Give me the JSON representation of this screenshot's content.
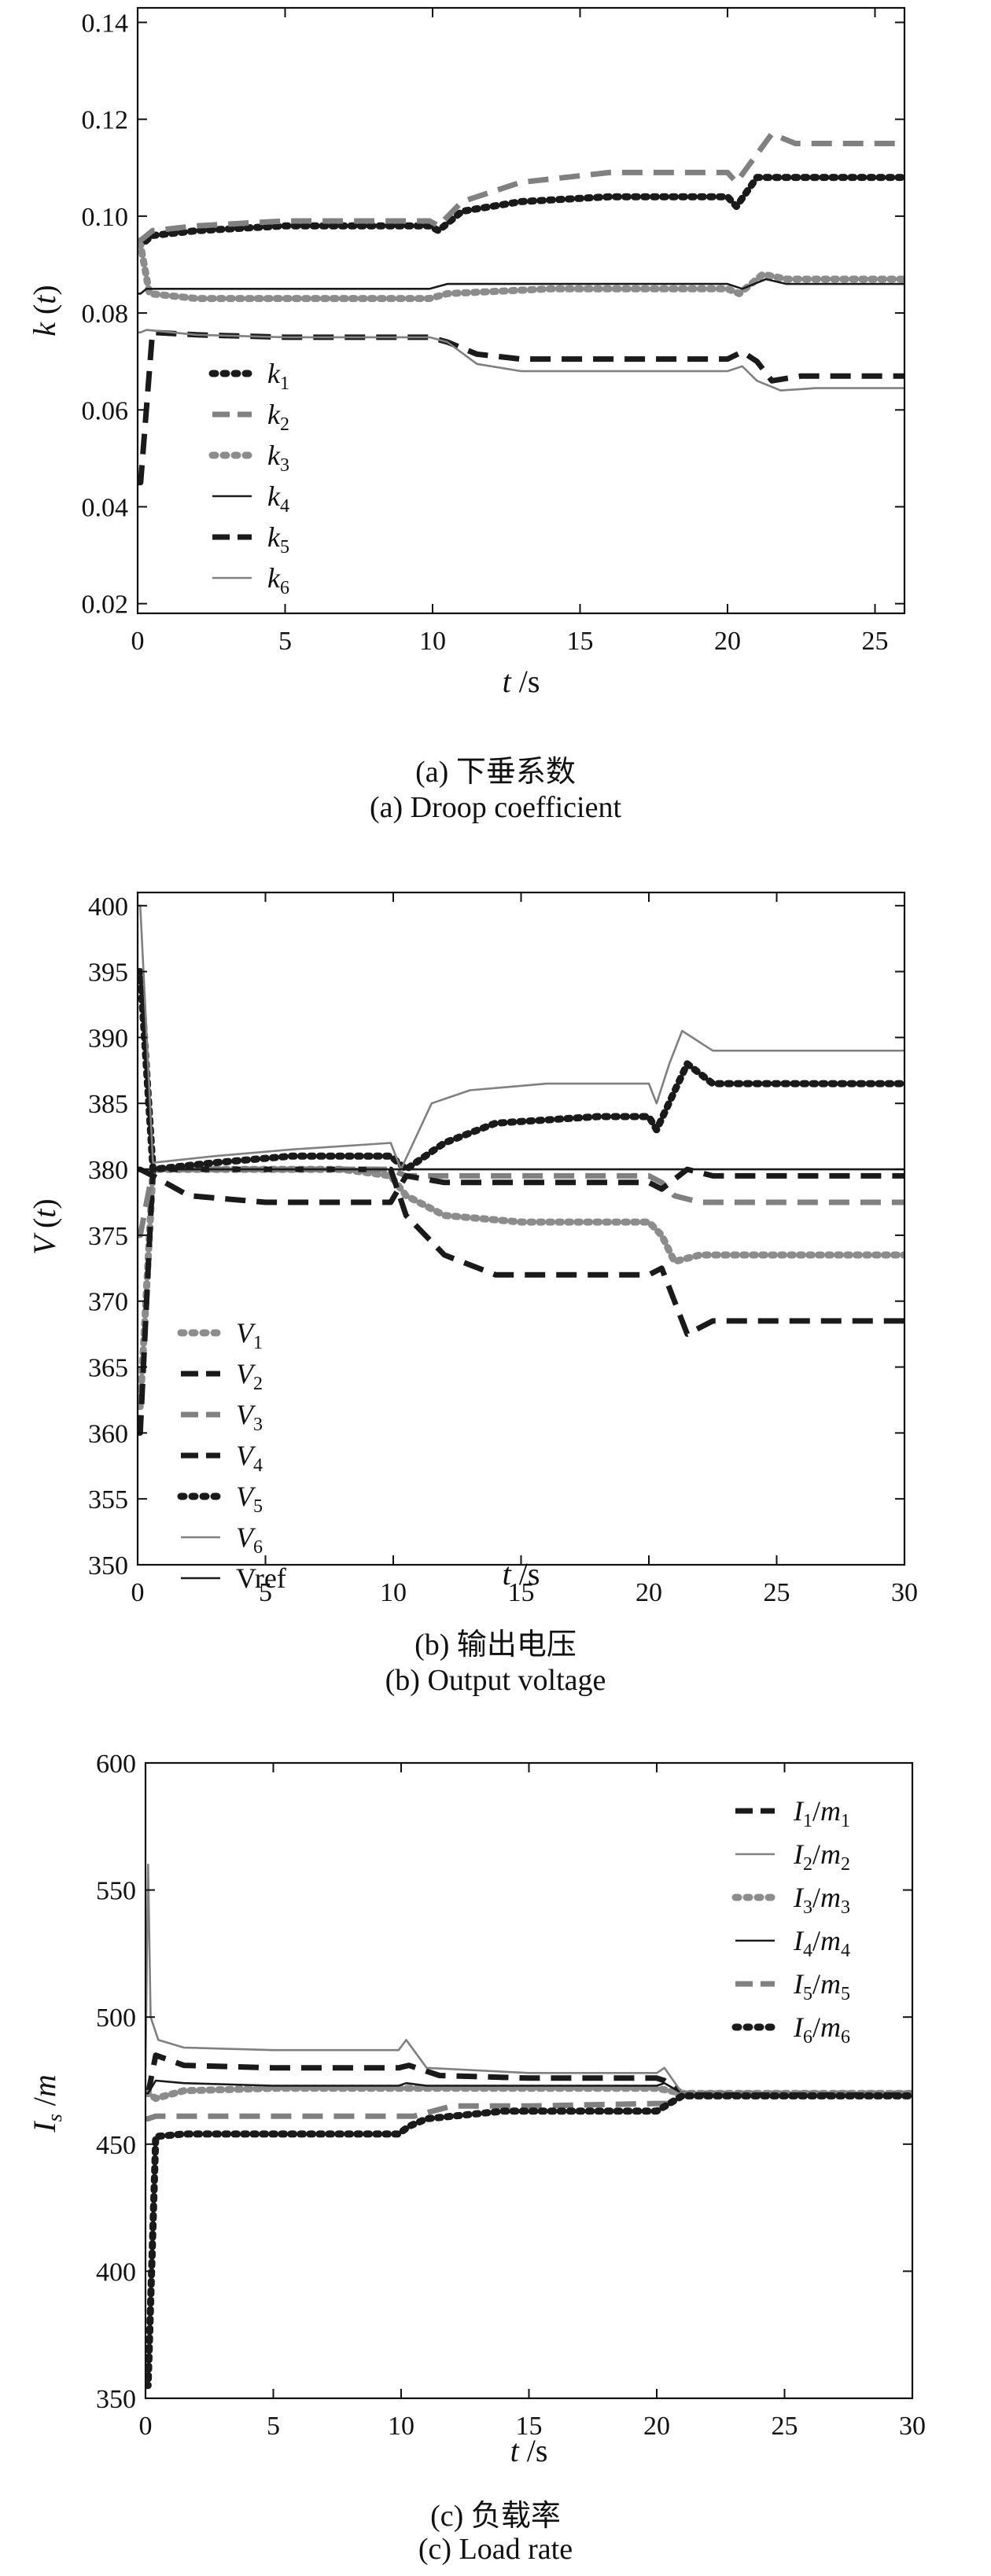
{
  "panels": [
    {
      "caption_cn": "(a) 下垂系数",
      "caption_en": "(a) Droop coefficient"
    },
    {
      "caption_cn": "(b) 输出电压",
      "caption_en": "(b) Output voltage"
    },
    {
      "caption_cn": "(c) 负载率",
      "caption_en": "(c) Load rate"
    }
  ],
  "chart_data": [
    {
      "type": "line",
      "title": "",
      "xlabel": "t /s",
      "ylabel": "k (t)",
      "xlim": [
        0,
        26
      ],
      "ylim": [
        0.018,
        0.143
      ],
      "xticks": [
        0,
        5,
        10,
        15,
        20,
        25
      ],
      "yticks": [
        0.02,
        0.04,
        0.06,
        0.08,
        0.1,
        0.12,
        0.14
      ],
      "ytick_labels": [
        "0.02",
        "0.04",
        "0.06",
        "0.08",
        "0.10",
        "0.12",
        "0.14"
      ],
      "legend": "left-middle",
      "grid": false,
      "series": [
        {
          "name": "k1",
          "sub": "1",
          "style": "dotted",
          "color": "#1a1a1a",
          "x": [
            0,
            0.1,
            0.5,
            2,
            5,
            9.9,
            10.2,
            11,
            13,
            16,
            20,
            20.3,
            21,
            22,
            26
          ],
          "y": [
            0.094,
            0.094,
            0.096,
            0.097,
            0.098,
            0.098,
            0.097,
            0.101,
            0.103,
            0.104,
            0.104,
            0.102,
            0.108,
            0.108,
            0.108
          ]
        },
        {
          "name": "k2",
          "sub": "2",
          "style": "dashed",
          "color": "#808080",
          "x": [
            0,
            0.1,
            0.5,
            2,
            5,
            9.9,
            10.2,
            11,
            13,
            16,
            20,
            20.3,
            21.5,
            22.3,
            23,
            26
          ],
          "y": [
            0.095,
            0.095,
            0.097,
            0.098,
            0.099,
            0.099,
            0.098,
            0.103,
            0.107,
            0.109,
            0.109,
            0.107,
            0.117,
            0.115,
            0.115,
            0.115
          ]
        },
        {
          "name": "k3",
          "sub": "3",
          "style": "dotted",
          "color": "#8c8c8c",
          "x": [
            0,
            0.1,
            0.4,
            2,
            5,
            9.9,
            10.5,
            14,
            20,
            20.4,
            21.2,
            22,
            26
          ],
          "y": [
            0.094,
            0.094,
            0.084,
            0.083,
            0.083,
            0.083,
            0.084,
            0.085,
            0.085,
            0.084,
            0.088,
            0.087,
            0.087
          ]
        },
        {
          "name": "k4",
          "sub": "4",
          "style": "solid",
          "color": "#1a1a1a",
          "x": [
            0,
            0.1,
            0.3,
            2,
            5,
            9.9,
            10.5,
            14,
            20,
            20.5,
            21.3,
            22,
            26
          ],
          "y": [
            0.084,
            0.084,
            0.085,
            0.085,
            0.085,
            0.085,
            0.086,
            0.086,
            0.086,
            0.085,
            0.087,
            0.086,
            0.086
          ]
        },
        {
          "name": "k5",
          "sub": "5",
          "style": "dashed",
          "color": "#1a1a1a",
          "x": [
            0,
            0.1,
            0.5,
            2,
            5,
            9.9,
            10.5,
            11.5,
            13,
            16,
            20,
            20.5,
            21,
            21.5,
            22.5,
            26
          ],
          "y": [
            0.045,
            0.045,
            0.076,
            0.0755,
            0.075,
            0.075,
            0.074,
            0.0715,
            0.0705,
            0.0705,
            0.0705,
            0.072,
            0.07,
            0.066,
            0.067,
            0.067
          ]
        },
        {
          "name": "k6",
          "sub": "6",
          "style": "solid",
          "color": "#808080",
          "x": [
            0,
            0.1,
            0.3,
            2,
            5,
            9.9,
            10.5,
            11.5,
            13,
            16,
            20,
            20.5,
            21,
            21.8,
            23,
            26
          ],
          "y": [
            0.076,
            0.076,
            0.0765,
            0.0755,
            0.075,
            0.075,
            0.074,
            0.0695,
            0.068,
            0.068,
            0.068,
            0.069,
            0.066,
            0.064,
            0.0645,
            0.0645
          ]
        }
      ]
    },
    {
      "type": "line",
      "title": "",
      "xlabel": "t /s",
      "ylabel": "V (t)",
      "xlim": [
        0,
        30
      ],
      "ylim": [
        350,
        401
      ],
      "xticks": [
        0,
        5,
        10,
        15,
        20,
        25,
        30
      ],
      "yticks": [
        350,
        355,
        360,
        365,
        370,
        375,
        380,
        385,
        390,
        395,
        400
      ],
      "legend": "left-bottom",
      "grid": false,
      "series": [
        {
          "name": "V1",
          "sub": "1",
          "style": "dotted",
          "color": "#8c8c8c",
          "x": [
            0,
            0.1,
            0.6,
            3,
            8,
            9.9,
            10.5,
            12,
            15,
            19,
            20,
            20.5,
            21,
            22,
            30
          ],
          "y": [
            362,
            362,
            380,
            380,
            380,
            379.5,
            378,
            376.5,
            376,
            376,
            376,
            375,
            373,
            373.5,
            373.5
          ]
        },
        {
          "name": "V2",
          "sub": "2",
          "style": "dashed",
          "color": "#1a1a1a",
          "x": [
            0,
            0.1,
            0.6,
            3,
            8,
            9.9,
            10.5,
            12,
            14,
            18,
            20,
            20.5,
            21.5,
            22.5,
            30
          ],
          "y": [
            360,
            360,
            380,
            380,
            380,
            380,
            376.5,
            373.5,
            372,
            372,
            372,
            372.5,
            367.5,
            368.5,
            368.5
          ]
        },
        {
          "name": "V3",
          "sub": "3",
          "style": "dashed",
          "color": "#808080",
          "x": [
            0,
            0.1,
            0.6,
            3,
            8,
            9.9,
            10.5,
            13,
            20,
            20.5,
            21,
            22,
            30
          ],
          "y": [
            375,
            375,
            380,
            380,
            380,
            380,
            379.5,
            379.5,
            379.5,
            379,
            378,
            377.5,
            377.5
          ]
        },
        {
          "name": "V4",
          "sub": "4",
          "style": "dashed",
          "color": "#1a1a1a",
          "x": [
            0,
            0.1,
            0.6,
            2,
            5,
            9.9,
            10.5,
            12,
            16,
            20,
            20.5,
            21.5,
            22.5,
            30
          ],
          "y": [
            380,
            380,
            379.5,
            378,
            377.5,
            377.5,
            379.5,
            379,
            379,
            379,
            378.5,
            380,
            379.5,
            379.5
          ]
        },
        {
          "name": "V5",
          "sub": "5",
          "style": "dotted",
          "color": "#1a1a1a",
          "x": [
            0,
            0.1,
            0.6,
            3,
            6,
            9.9,
            10.5,
            12,
            14,
            18,
            20,
            20.3,
            21.5,
            22.5,
            30
          ],
          "y": [
            395,
            395,
            380,
            380.5,
            381,
            381,
            380,
            382,
            383.5,
            384,
            384,
            383,
            388,
            386.5,
            386.5
          ]
        },
        {
          "name": "V6",
          "sub": "6",
          "style": "solid",
          "color": "#808080",
          "x": [
            0,
            0.1,
            0.6,
            3,
            6,
            9.9,
            10.3,
            11.5,
            13,
            16,
            20,
            20.3,
            20.8,
            21.3,
            22.5,
            30
          ],
          "y": [
            400,
            400,
            380.5,
            381,
            381.5,
            382,
            380,
            385,
            386,
            386.5,
            386.5,
            385,
            388,
            390.5,
            389,
            389
          ]
        },
        {
          "name": "Vref",
          "sub": "",
          "style": "solid",
          "color": "#1a1a1a",
          "x": [
            0,
            30
          ],
          "y": [
            380,
            380
          ]
        }
      ]
    },
    {
      "type": "line",
      "title": "",
      "xlabel": "t /s",
      "ylabel": "Is /m",
      "xlim": [
        0,
        30
      ],
      "ylim": [
        350,
        600
      ],
      "xticks": [
        0,
        5,
        10,
        15,
        20,
        25,
        30
      ],
      "yticks": [
        350,
        400,
        450,
        500,
        550,
        600
      ],
      "legend": "top-right",
      "grid": false,
      "series": [
        {
          "name": "I1/m1",
          "sub": "1",
          "style": "dashed",
          "color": "#1a1a1a",
          "x": [
            0,
            0.1,
            0.4,
            1.5,
            5,
            9.9,
            10.3,
            11.5,
            15,
            20,
            20.3,
            21,
            30
          ],
          "y": [
            470,
            470,
            485,
            481,
            480,
            480,
            481,
            477,
            476,
            476,
            475,
            470,
            470
          ]
        },
        {
          "name": "I2/m2",
          "sub": "2",
          "style": "solid",
          "color": "#808080",
          "x": [
            0,
            0.1,
            0.2,
            0.5,
            1.5,
            5,
            9.9,
            10.2,
            11,
            15,
            20,
            20.3,
            21,
            30
          ],
          "y": [
            480,
            560,
            500,
            491,
            488,
            487,
            487,
            491,
            480,
            478,
            478,
            480,
            470,
            470
          ]
        },
        {
          "name": "I3/m3",
          "sub": "3",
          "style": "dotted",
          "color": "#8c8c8c",
          "x": [
            0,
            0.1,
            0.4,
            1.5,
            5,
            9.9,
            10.5,
            15,
            20,
            20.5,
            21,
            30
          ],
          "y": [
            470,
            470,
            468,
            471,
            472,
            472,
            472,
            472,
            472,
            471,
            470,
            470
          ]
        },
        {
          "name": "I4/m4",
          "sub": "4",
          "style": "solid",
          "color": "#1a1a1a",
          "x": [
            0,
            0.1,
            0.4,
            1.5,
            5,
            9.9,
            10.2,
            11,
            15,
            20,
            20.3,
            21,
            30
          ],
          "y": [
            470,
            470,
            475,
            474,
            473,
            473,
            474,
            473,
            473,
            473,
            474,
            470,
            470
          ]
        },
        {
          "name": "I5/m5",
          "sub": "5",
          "style": "dashed",
          "color": "#808080",
          "x": [
            0,
            0.1,
            0.4,
            1.5,
            5,
            9.9,
            10.5,
            12,
            15,
            20,
            20.5,
            21,
            30
          ],
          "y": [
            460,
            460,
            461,
            461,
            461,
            461,
            461,
            465,
            465,
            466,
            466,
            470,
            470
          ]
        },
        {
          "name": "I6/m6",
          "sub": "6",
          "style": "dotted",
          "color": "#1a1a1a",
          "x": [
            0,
            0.1,
            0.4,
            1.5,
            5,
            9.9,
            10.3,
            11,
            14,
            20,
            20.5,
            21,
            30
          ],
          "y": [
            355,
            355,
            453,
            454,
            454,
            454,
            457,
            460,
            463,
            463,
            466,
            469,
            469
          ]
        }
      ]
    }
  ]
}
